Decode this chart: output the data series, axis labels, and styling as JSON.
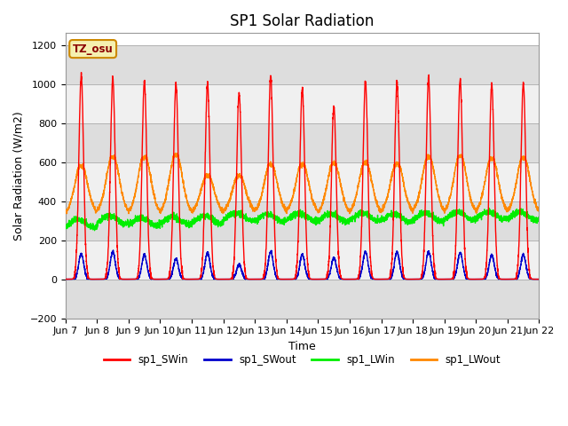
{
  "title": "SP1 Solar Radiation",
  "xlabel": "Time",
  "ylabel": "Solar Radiation (W/m2)",
  "ylim": [
    -200,
    1260
  ],
  "yticks": [
    -200,
    0,
    200,
    400,
    600,
    800,
    1000,
    1200
  ],
  "x_tick_labels": [
    "Jun 7",
    "Jun 8",
    "Jun 9",
    "Jun 10",
    "Jun 11",
    "Jun 12",
    "Jun 13",
    "Jun 14",
    "Jun 15",
    "Jun 16",
    "Jun 17",
    "Jun 18",
    "Jun 19",
    "Jun 20",
    "Jun 21",
    "Jun 22"
  ],
  "tz_label": "TZ_osu",
  "series_colors": {
    "sp1_SWin": "#ff0000",
    "sp1_SWout": "#0000cc",
    "sp1_LWin": "#00ee00",
    "sp1_LWout": "#ff8800"
  },
  "bg_color": "#ffffff",
  "plot_bg_color": "#ffffff",
  "band_color_dark": "#dddddd",
  "band_color_light": "#f0f0f0",
  "grid_color": "#bbbbbb",
  "title_fontsize": 12,
  "axis_label_fontsize": 9,
  "tick_fontsize": 8
}
